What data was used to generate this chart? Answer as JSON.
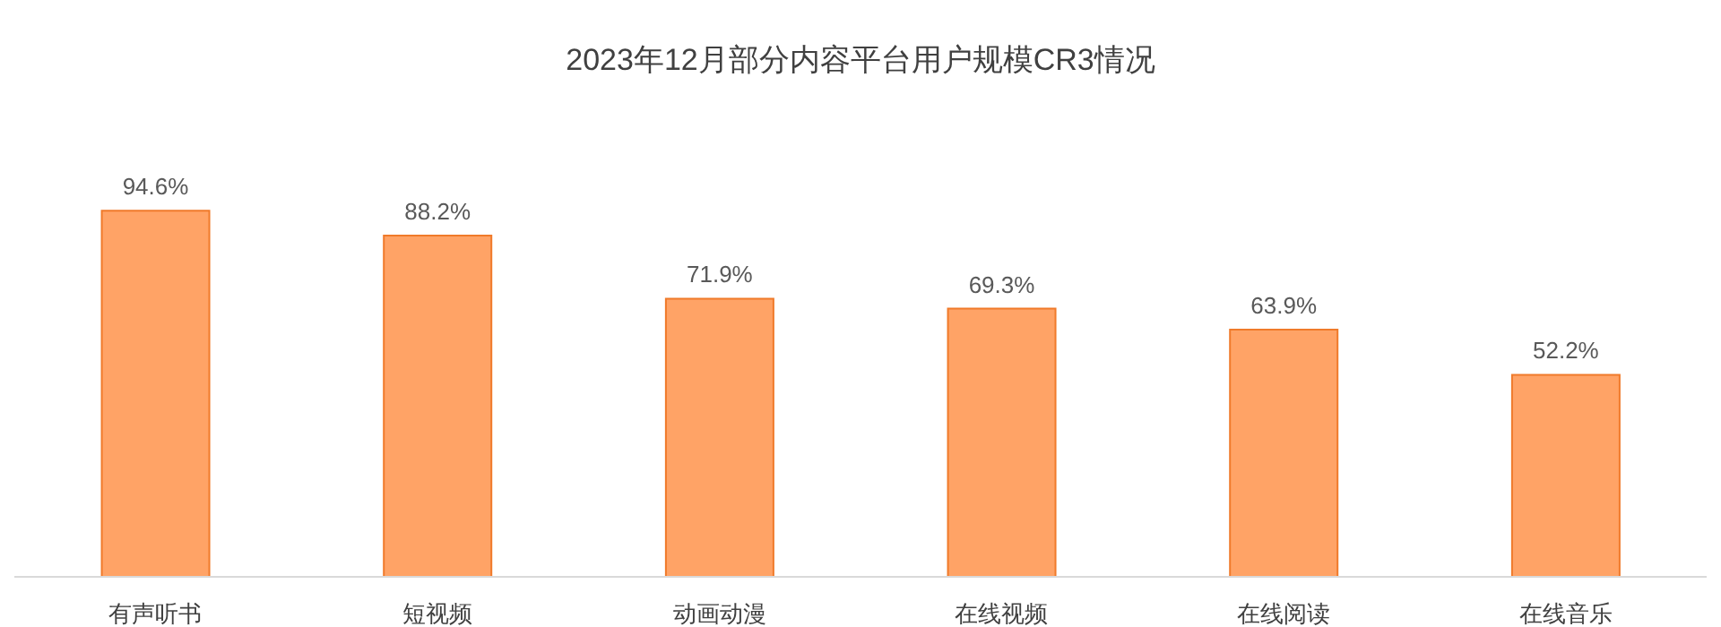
{
  "chart_data": {
    "type": "bar",
    "title": "2023年12月部分内容平台用户规模CR3情况",
    "categories": [
      "有声听书",
      "短视频",
      "动画动漫",
      "在线视频",
      "在线阅读",
      "在线音乐"
    ],
    "values": [
      94.6,
      88.2,
      71.9,
      69.3,
      63.9,
      52.2
    ],
    "value_labels": [
      "94.6%",
      "88.2%",
      "71.9%",
      "69.3%",
      "63.9%",
      "52.2%"
    ],
    "color": "#ffa366",
    "grid": false,
    "legend": false
  }
}
